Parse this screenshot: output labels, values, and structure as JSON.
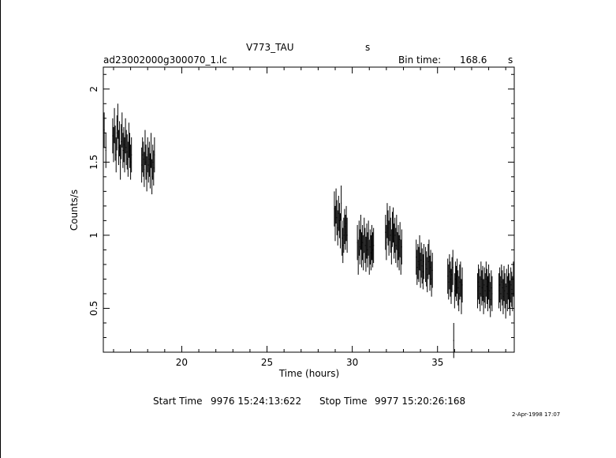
{
  "header": {
    "object": "V773_TAU",
    "object_unit": "s",
    "filename": "ad23002000g300070_1.lc",
    "bin_time_label": "Bin time:",
    "bin_time_value": "168.6",
    "bin_time_unit": "s"
  },
  "footer": {
    "start_label": "Start Time",
    "start_value": "9976  15:24:13:622",
    "stop_label": "Stop Time",
    "stop_value": "9977  15:20:26:168",
    "timestamp": "2-Apr-1998 17:07"
  },
  "chart_data": {
    "type": "scatter",
    "title": "V773_TAU",
    "xlabel": "Time (hours)",
    "ylabel": "Counts/s",
    "xlim": [
      15.4,
      39.5
    ],
    "ylim": [
      0.2,
      2.15
    ],
    "x_ticks": [
      20,
      25,
      30,
      35
    ],
    "y_ticks": [
      0.5,
      1,
      1.5,
      2
    ],
    "x_tick_labels": [
      "20",
      "25",
      "30",
      "35"
    ],
    "y_tick_labels": [
      "0.5",
      "1",
      "1.5",
      "2"
    ],
    "grid": false,
    "error_bars": true,
    "error": 0.12,
    "series": [
      {
        "x": [
          15.45,
          15.55,
          15.95,
          16.0,
          16.05,
          16.1,
          16.15,
          16.2,
          16.25,
          16.3,
          16.35,
          16.4,
          16.45,
          16.5,
          16.55,
          16.6,
          16.65,
          16.7,
          16.75,
          16.8,
          16.85,
          16.9,
          16.95,
          17.0,
          17.05,
          17.65,
          17.7,
          17.75,
          17.8,
          17.85,
          17.9,
          17.95,
          18.0,
          18.05,
          18.1,
          18.15,
          18.2,
          18.25,
          18.3,
          18.35,
          18.4,
          28.95,
          29.0,
          29.05,
          29.1,
          29.15,
          29.2,
          29.25,
          29.3,
          29.35,
          29.4,
          29.45,
          29.5,
          29.55,
          29.6,
          29.65,
          29.7,
          30.3,
          30.35,
          30.4,
          30.45,
          30.5,
          30.55,
          30.6,
          30.65,
          30.7,
          30.75,
          30.8,
          30.85,
          30.9,
          30.95,
          31.0,
          31.05,
          31.1,
          31.15,
          31.2,
          31.25,
          31.95,
          32.0,
          32.05,
          32.1,
          32.15,
          32.2,
          32.25,
          32.3,
          32.35,
          32.4,
          32.45,
          32.5,
          32.55,
          32.6,
          32.65,
          32.7,
          32.75,
          32.8,
          32.85,
          32.9,
          33.75,
          33.8,
          33.85,
          33.9,
          33.95,
          34.0,
          34.05,
          34.1,
          34.15,
          34.2,
          34.3,
          34.35,
          34.4,
          34.45,
          34.5,
          34.55,
          34.6,
          34.65,
          34.7,
          35.6,
          35.65,
          35.7,
          35.75,
          35.8,
          35.85,
          35.9,
          35.95,
          36.0,
          36.05,
          36.1,
          36.15,
          36.2,
          36.25,
          36.3,
          36.35,
          36.4,
          36.45,
          37.35,
          37.4,
          37.45,
          37.5,
          37.55,
          37.6,
          37.65,
          37.7,
          37.75,
          37.8,
          37.85,
          37.9,
          37.95,
          38.0,
          38.05,
          38.1,
          38.15,
          38.2,
          38.6,
          38.65,
          38.7,
          38.75,
          38.8,
          38.85,
          38.9,
          38.95,
          39.0,
          39.05,
          39.1,
          39.15,
          39.2,
          39.25,
          39.3,
          39.35,
          39.4,
          39.45
        ],
        "y": [
          1.72,
          1.58,
          1.68,
          1.62,
          1.75,
          1.63,
          1.55,
          1.7,
          1.78,
          1.6,
          1.66,
          1.5,
          1.64,
          1.72,
          1.58,
          1.62,
          1.55,
          1.68,
          1.6,
          1.57,
          1.52,
          1.65,
          1.58,
          1.5,
          1.55,
          1.48,
          1.55,
          1.52,
          1.45,
          1.6,
          1.5,
          1.42,
          1.55,
          1.48,
          1.52,
          1.44,
          1.58,
          1.4,
          1.5,
          1.46,
          1.55,
          1.18,
          1.08,
          1.2,
          1.12,
          1.05,
          1.15,
          1.1,
          1.03,
          1.22,
          0.98,
          0.93,
          1.0,
          1.06,
          1.02,
          1.08,
          1.0,
          0.95,
          0.85,
          0.98,
          0.92,
          1.02,
          0.9,
          0.95,
          0.88,
          1.0,
          0.93,
          0.87,
          0.96,
          0.9,
          0.98,
          0.85,
          0.92,
          0.88,
          0.95,
          0.9,
          0.93,
          1.02,
          0.95,
          1.1,
          1.05,
          0.98,
          1.08,
          1.0,
          0.92,
          1.04,
          1.07,
          0.96,
          1.0,
          0.93,
          1.02,
          0.9,
          0.95,
          0.88,
          0.97,
          0.85,
          0.92,
          0.85,
          0.78,
          0.82,
          0.8,
          0.88,
          0.76,
          0.83,
          0.79,
          0.75,
          0.82,
          0.8,
          0.77,
          0.73,
          0.82,
          0.85,
          0.74,
          0.78,
          0.7,
          0.76,
          0.72,
          0.68,
          0.75,
          0.7,
          0.65,
          0.73,
          0.78,
          0.28,
          0.62,
          0.7,
          0.67,
          0.72,
          0.64,
          0.6,
          0.68,
          0.7,
          0.58,
          0.66,
          0.62,
          0.68,
          0.65,
          0.6,
          0.7,
          0.64,
          0.67,
          0.58,
          0.66,
          0.62,
          0.7,
          0.65,
          0.6,
          0.68,
          0.62,
          0.56,
          0.64,
          0.6,
          0.62,
          0.66,
          0.6,
          0.68,
          0.64,
          0.58,
          0.67,
          0.62,
          0.55,
          0.65,
          0.6,
          0.68,
          0.62,
          0.57,
          0.66,
          0.63,
          0.6,
          0.7
        ]
      }
    ]
  }
}
